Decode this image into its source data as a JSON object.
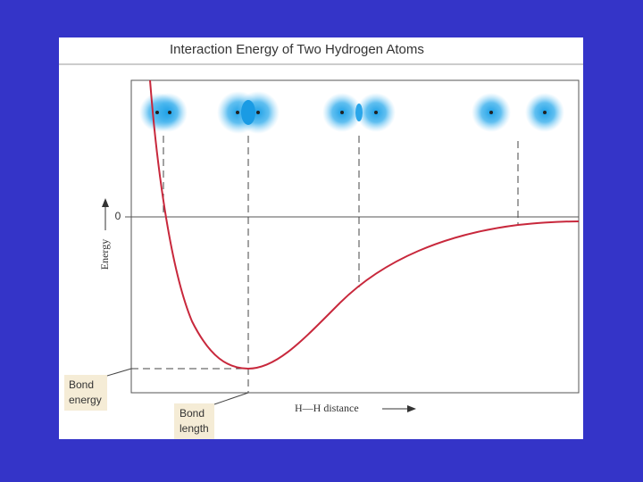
{
  "title": "Interaction Energy of Two Hydrogen Atoms",
  "y_axis": {
    "label": "Energy",
    "zero_label": "0"
  },
  "x_axis": {
    "label": "H—H distance"
  },
  "annotations": {
    "bond_energy": [
      "Bond",
      "energy"
    ],
    "bond_length": [
      "Bond",
      "length"
    ]
  }
}
